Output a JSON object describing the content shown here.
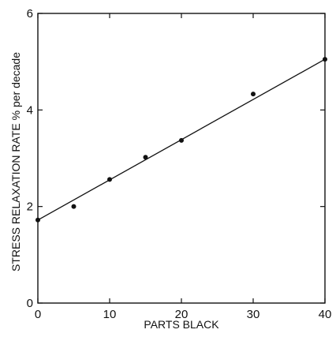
{
  "chart_data": {
    "type": "scatter",
    "title": "",
    "xlabel": "PARTS BLACK",
    "ylabel": "STRESS RELAXATION RATE  % per decade",
    "xlim": [
      0,
      40
    ],
    "ylim": [
      0,
      6
    ],
    "x_ticks": [
      0,
      10,
      20,
      30,
      40
    ],
    "y_ticks": [
      0,
      2,
      4,
      6
    ],
    "x_tick_labels": [
      "0",
      "10",
      "20",
      "30",
      "40"
    ],
    "y_tick_labels": [
      "0",
      "2",
      "4",
      "6"
    ],
    "grid": false,
    "legend": "none",
    "series": [
      {
        "type": "scatter",
        "x": [
          0,
          5,
          10,
          15,
          20,
          30,
          40
        ],
        "y": [
          1.72,
          2.0,
          2.56,
          3.02,
          3.37,
          4.33,
          5.05
        ]
      },
      {
        "type": "line",
        "x": [
          0,
          40
        ],
        "y": [
          1.72,
          5.05
        ]
      }
    ],
    "colors": {
      "ink": "#111111",
      "background": "#ffffff"
    }
  }
}
